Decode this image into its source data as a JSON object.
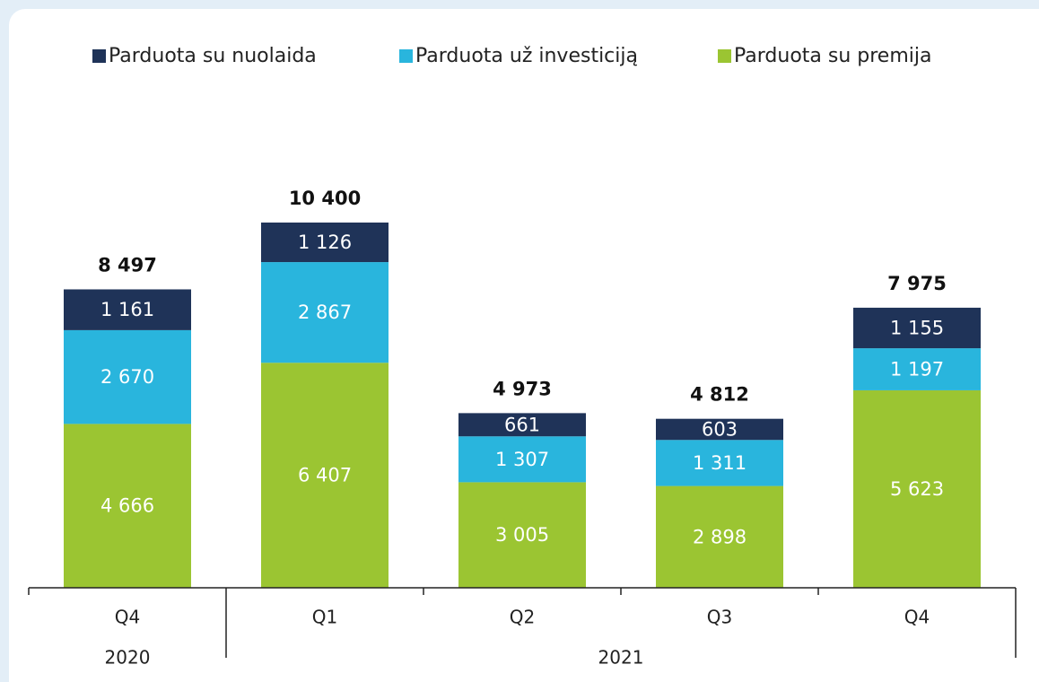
{
  "chart_data": {
    "type": "stacked_bar",
    "categories": [
      "Q4",
      "Q1",
      "Q2",
      "Q3",
      "Q4"
    ],
    "category_groups": [
      "2020",
      "2021",
      "2021",
      "2021",
      "2021"
    ],
    "series": [
      {
        "name": "Parduota su nuolaida",
        "color": "#1f3358",
        "values": [
          1161,
          1126,
          661,
          603,
          1155
        ],
        "value_labels": [
          "1 161",
          "1 126",
          "661",
          "603",
          "1 155"
        ]
      },
      {
        "name": "Parduota už investiciją",
        "color": "#29b5dd",
        "values": [
          2670,
          2867,
          1307,
          1311,
          1197
        ],
        "value_labels": [
          "2 670",
          "2 867",
          "1 307",
          "1 311",
          "1 197"
        ]
      },
      {
        "name": "Parduota su premija",
        "color": "#9bc532",
        "values": [
          4666,
          6407,
          3005,
          2898,
          5623
        ],
        "value_labels": [
          "4 666",
          "6 407",
          "3 005",
          "2 898",
          "5 623"
        ]
      }
    ],
    "totals": [
      8497,
      10400,
      4973,
      4812,
      7975
    ],
    "total_labels": [
      "8 497",
      "10 400",
      "4 973",
      "4 812",
      "7 975"
    ],
    "legend": "top"
  }
}
